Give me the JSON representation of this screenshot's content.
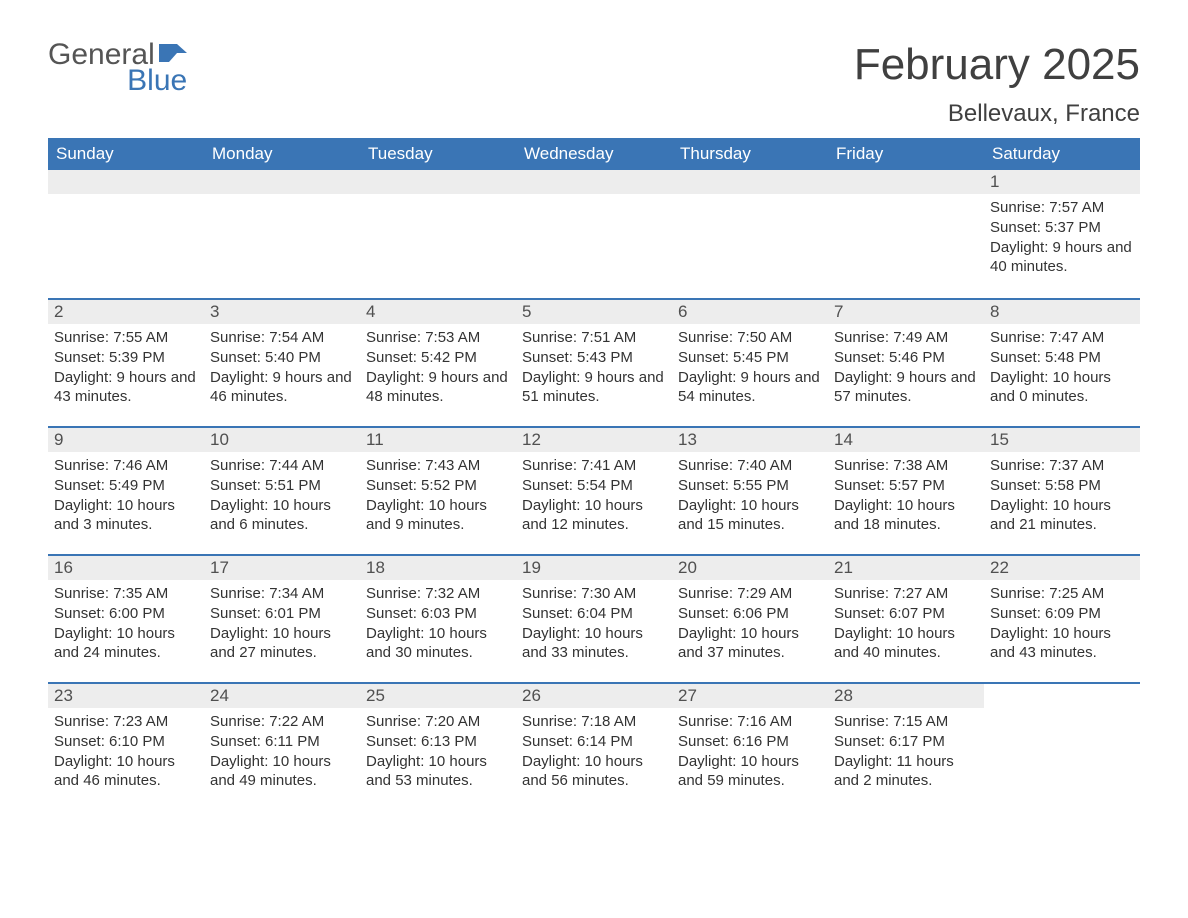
{
  "brand": {
    "text1": "General",
    "text2": "Blue",
    "color_general": "#555555",
    "color_blue": "#3a75b5",
    "flag_color": "#3a75b5"
  },
  "title": "February 2025",
  "location": "Bellevaux, France",
  "colors": {
    "header_bg": "#3a75b5",
    "header_text": "#ffffff",
    "daynum_bg": "#ededed",
    "row_border": "#3a75b5",
    "body_text": "#333333",
    "page_bg": "#ffffff"
  },
  "fonts": {
    "title_size_pt": 33,
    "subtitle_size_pt": 18,
    "weekday_size_pt": 13,
    "daynum_size_pt": 13,
    "detail_size_pt": 11
  },
  "weekdays": [
    "Sunday",
    "Monday",
    "Tuesday",
    "Wednesday",
    "Thursday",
    "Friday",
    "Saturday"
  ],
  "weeks": [
    [
      {
        "empty": true
      },
      {
        "empty": true
      },
      {
        "empty": true
      },
      {
        "empty": true
      },
      {
        "empty": true
      },
      {
        "empty": true
      },
      {
        "day": "1",
        "sunrise": "Sunrise: 7:57 AM",
        "sunset": "Sunset: 5:37 PM",
        "daylight": "Daylight: 9 hours and 40 minutes."
      }
    ],
    [
      {
        "day": "2",
        "sunrise": "Sunrise: 7:55 AM",
        "sunset": "Sunset: 5:39 PM",
        "daylight": "Daylight: 9 hours and 43 minutes."
      },
      {
        "day": "3",
        "sunrise": "Sunrise: 7:54 AM",
        "sunset": "Sunset: 5:40 PM",
        "daylight": "Daylight: 9 hours and 46 minutes."
      },
      {
        "day": "4",
        "sunrise": "Sunrise: 7:53 AM",
        "sunset": "Sunset: 5:42 PM",
        "daylight": "Daylight: 9 hours and 48 minutes."
      },
      {
        "day": "5",
        "sunrise": "Sunrise: 7:51 AM",
        "sunset": "Sunset: 5:43 PM",
        "daylight": "Daylight: 9 hours and 51 minutes."
      },
      {
        "day": "6",
        "sunrise": "Sunrise: 7:50 AM",
        "sunset": "Sunset: 5:45 PM",
        "daylight": "Daylight: 9 hours and 54 minutes."
      },
      {
        "day": "7",
        "sunrise": "Sunrise: 7:49 AM",
        "sunset": "Sunset: 5:46 PM",
        "daylight": "Daylight: 9 hours and 57 minutes."
      },
      {
        "day": "8",
        "sunrise": "Sunrise: 7:47 AM",
        "sunset": "Sunset: 5:48 PM",
        "daylight": "Daylight: 10 hours and 0 minutes."
      }
    ],
    [
      {
        "day": "9",
        "sunrise": "Sunrise: 7:46 AM",
        "sunset": "Sunset: 5:49 PM",
        "daylight": "Daylight: 10 hours and 3 minutes."
      },
      {
        "day": "10",
        "sunrise": "Sunrise: 7:44 AM",
        "sunset": "Sunset: 5:51 PM",
        "daylight": "Daylight: 10 hours and 6 minutes."
      },
      {
        "day": "11",
        "sunrise": "Sunrise: 7:43 AM",
        "sunset": "Sunset: 5:52 PM",
        "daylight": "Daylight: 10 hours and 9 minutes."
      },
      {
        "day": "12",
        "sunrise": "Sunrise: 7:41 AM",
        "sunset": "Sunset: 5:54 PM",
        "daylight": "Daylight: 10 hours and 12 minutes."
      },
      {
        "day": "13",
        "sunrise": "Sunrise: 7:40 AM",
        "sunset": "Sunset: 5:55 PM",
        "daylight": "Daylight: 10 hours and 15 minutes."
      },
      {
        "day": "14",
        "sunrise": "Sunrise: 7:38 AM",
        "sunset": "Sunset: 5:57 PM",
        "daylight": "Daylight: 10 hours and 18 minutes."
      },
      {
        "day": "15",
        "sunrise": "Sunrise: 7:37 AM",
        "sunset": "Sunset: 5:58 PM",
        "daylight": "Daylight: 10 hours and 21 minutes."
      }
    ],
    [
      {
        "day": "16",
        "sunrise": "Sunrise: 7:35 AM",
        "sunset": "Sunset: 6:00 PM",
        "daylight": "Daylight: 10 hours and 24 minutes."
      },
      {
        "day": "17",
        "sunrise": "Sunrise: 7:34 AM",
        "sunset": "Sunset: 6:01 PM",
        "daylight": "Daylight: 10 hours and 27 minutes."
      },
      {
        "day": "18",
        "sunrise": "Sunrise: 7:32 AM",
        "sunset": "Sunset: 6:03 PM",
        "daylight": "Daylight: 10 hours and 30 minutes."
      },
      {
        "day": "19",
        "sunrise": "Sunrise: 7:30 AM",
        "sunset": "Sunset: 6:04 PM",
        "daylight": "Daylight: 10 hours and 33 minutes."
      },
      {
        "day": "20",
        "sunrise": "Sunrise: 7:29 AM",
        "sunset": "Sunset: 6:06 PM",
        "daylight": "Daylight: 10 hours and 37 minutes."
      },
      {
        "day": "21",
        "sunrise": "Sunrise: 7:27 AM",
        "sunset": "Sunset: 6:07 PM",
        "daylight": "Daylight: 10 hours and 40 minutes."
      },
      {
        "day": "22",
        "sunrise": "Sunrise: 7:25 AM",
        "sunset": "Sunset: 6:09 PM",
        "daylight": "Daylight: 10 hours and 43 minutes."
      }
    ],
    [
      {
        "day": "23",
        "sunrise": "Sunrise: 7:23 AM",
        "sunset": "Sunset: 6:10 PM",
        "daylight": "Daylight: 10 hours and 46 minutes."
      },
      {
        "day": "24",
        "sunrise": "Sunrise: 7:22 AM",
        "sunset": "Sunset: 6:11 PM",
        "daylight": "Daylight: 10 hours and 49 minutes."
      },
      {
        "day": "25",
        "sunrise": "Sunrise: 7:20 AM",
        "sunset": "Sunset: 6:13 PM",
        "daylight": "Daylight: 10 hours and 53 minutes."
      },
      {
        "day": "26",
        "sunrise": "Sunrise: 7:18 AM",
        "sunset": "Sunset: 6:14 PM",
        "daylight": "Daylight: 10 hours and 56 minutes."
      },
      {
        "day": "27",
        "sunrise": "Sunrise: 7:16 AM",
        "sunset": "Sunset: 6:16 PM",
        "daylight": "Daylight: 10 hours and 59 minutes."
      },
      {
        "day": "28",
        "sunrise": "Sunrise: 7:15 AM",
        "sunset": "Sunset: 6:17 PM",
        "daylight": "Daylight: 11 hours and 2 minutes."
      },
      {
        "empty": true,
        "no_bar": true
      }
    ]
  ]
}
